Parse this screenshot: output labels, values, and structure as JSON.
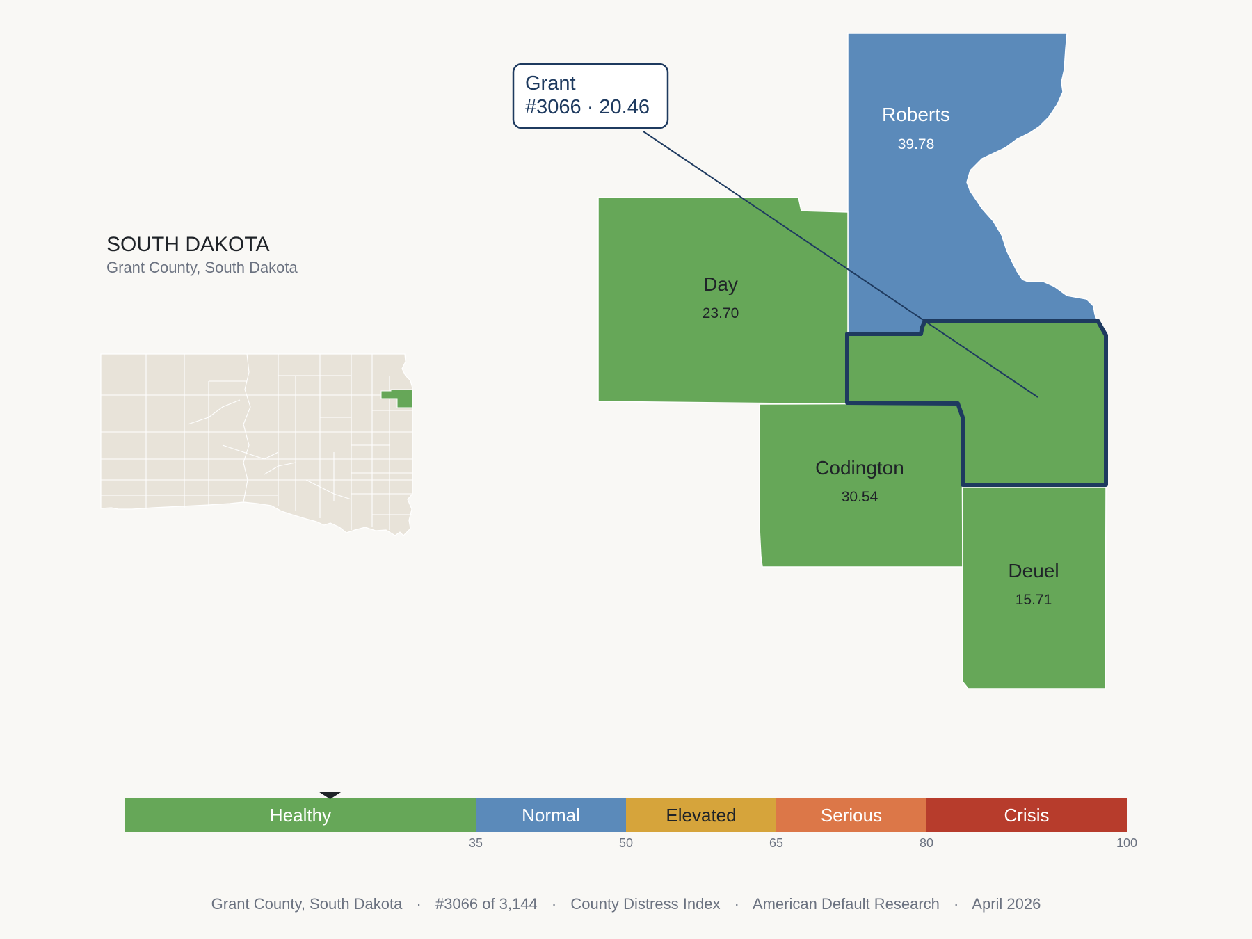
{
  "state": {
    "name": "SOUTH DAKOTA",
    "subtitle": "Grant County, South Dakota"
  },
  "colors": {
    "healthy": "#66a758",
    "normal": "#5b8aba",
    "elevated": "#d6a43b",
    "serious": "#dc7748",
    "crisis": "#b73c2c",
    "highlight_outline": "#1e3a5f",
    "inset_fill": "#e8e3d9"
  },
  "counties": [
    {
      "id": "roberts",
      "name": "Roberts",
      "score": "39.78",
      "band": "normal"
    },
    {
      "id": "day",
      "name": "Day",
      "score": "23.70",
      "band": "healthy"
    },
    {
      "id": "codington",
      "name": "Codington",
      "score": "30.54",
      "band": "healthy"
    },
    {
      "id": "deuel",
      "name": "Deuel",
      "score": "15.71",
      "band": "healthy"
    },
    {
      "id": "grant",
      "name": "Grant",
      "score": "20.46",
      "band": "healthy",
      "selected": true
    }
  ],
  "callout": {
    "line1": "Grant",
    "line2": "#3066 · 20.46"
  },
  "legend": {
    "min": 0,
    "max": 100,
    "marker_value": 20.46,
    "bands": [
      {
        "label": "Healthy",
        "from": 0,
        "to": 35,
        "color": "#66a758",
        "text_color": "#ffffff"
      },
      {
        "label": "Normal",
        "from": 35,
        "to": 50,
        "color": "#5b8aba",
        "text_color": "#ffffff"
      },
      {
        "label": "Elevated",
        "from": 50,
        "to": 65,
        "color": "#d6a43b",
        "text_color": "#1f2328"
      },
      {
        "label": "Serious",
        "from": 65,
        "to": 80,
        "color": "#dc7748",
        "text_color": "#ffffff"
      },
      {
        "label": "Crisis",
        "from": 80,
        "to": 100,
        "color": "#b73c2c",
        "text_color": "#ffffff"
      }
    ],
    "ticks": [
      "35",
      "50",
      "65",
      "80",
      "100"
    ]
  },
  "footer": {
    "county": "Grant County, South Dakota",
    "rank": "#3066 of 3,144",
    "index": "County Distress Index",
    "source": "American Default Research",
    "date": "April 2026",
    "separator": "·"
  }
}
